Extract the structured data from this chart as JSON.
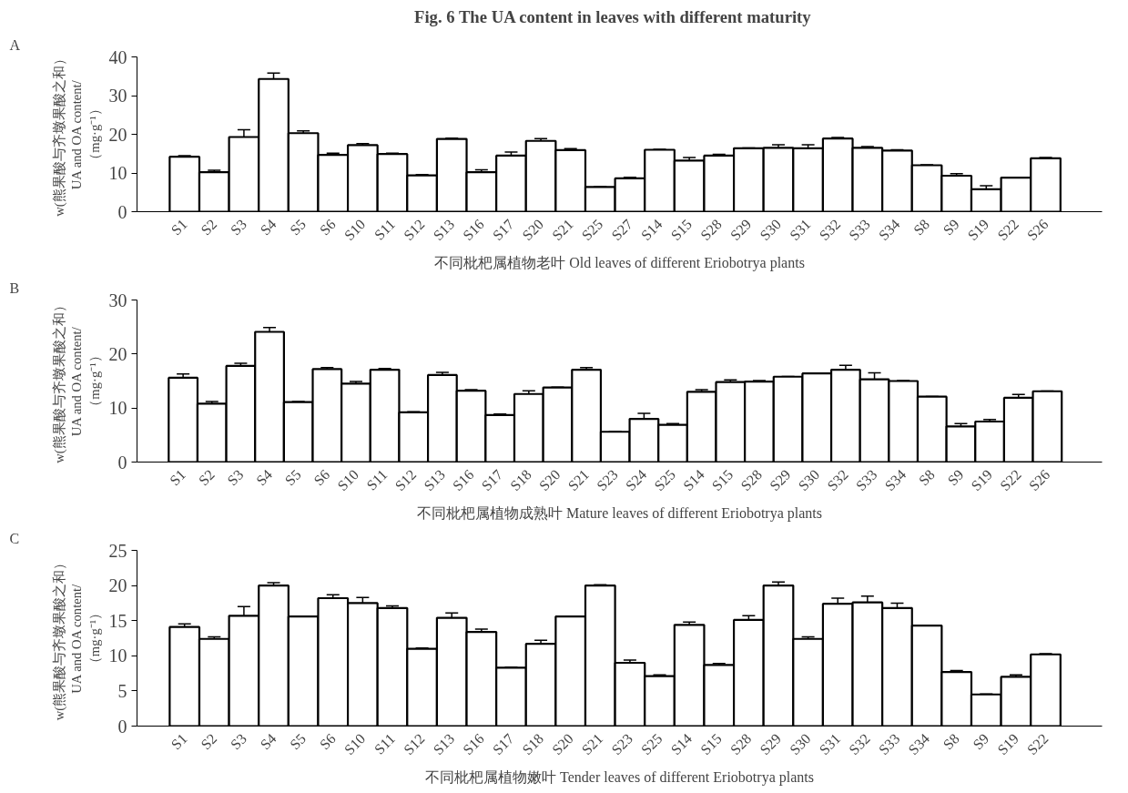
{
  "chart_data": [
    {
      "type": "bar",
      "title": "Fig. 6    The UA content in leaves with different maturity",
      "xlabel": "不同枇杷属植物老叶 Old leaves of different Eriobotrya plants",
      "ylabel": "w(熊果酸与齐墩果酸之和）\nUA and OA content/\n（mg·g⁻¹）",
      "annotations": [
        "A"
      ],
      "categories": [
        "S1",
        "S2",
        "S3",
        "S4",
        "S5",
        "S6",
        "S10",
        "S11",
        "S12",
        "S13",
        "S16",
        "S17",
        "S20",
        "S21",
        "S25",
        "S27",
        "S14",
        "S15",
        "S28",
        "S29",
        "S30",
        "S31",
        "S32",
        "S33",
        "S34",
        "S8",
        "S9",
        "S19",
        "S22",
        "S26"
      ],
      "series": [
        {
          "color": "#ffffff",
          "values": [
            14.2,
            10.2,
            19.3,
            34.3,
            20.3,
            14.7,
            17.2,
            14.9,
            9.4,
            18.8,
            10.2,
            14.5,
            18.3,
            15.9,
            6.4,
            8.6,
            16.0,
            13.2,
            14.5,
            16.4,
            16.5,
            16.4,
            18.9,
            16.5,
            15.8,
            12.0,
            9.3,
            5.8,
            8.8,
            13.8
          ],
          "errors": [
            0.3,
            0.5,
            1.9,
            1.5,
            0.6,
            0.4,
            0.4,
            0.2,
            0.2,
            0.2,
            0.6,
            0.9,
            0.6,
            0.4,
            0.1,
            0.3,
            0.1,
            0.8,
            0.3,
            0.1,
            0.8,
            0.9,
            0.3,
            0.3,
            0.2,
            0.1,
            0.5,
            0.9,
            0.1,
            0.2
          ]
        }
      ],
      "ylim": [
        0,
        40
      ],
      "yticks": [
        0,
        10,
        20,
        30,
        40
      ]
    },
    {
      "type": "bar",
      "xlabel": "不同枇杷属植物成熟叶 Mature leaves of different Eriobotrya plants",
      "ylabel": "w(熊果酸与齐墩果酸之和）\nUA and OA content/\n（mg·g⁻¹）",
      "annotations": [
        "B"
      ],
      "categories": [
        "S1",
        "S2",
        "S3",
        "S4",
        "S5",
        "S6",
        "S10",
        "S11",
        "S12",
        "S13",
        "S16",
        "S17",
        "S18",
        "S20",
        "S21",
        "S23",
        "S24",
        "S25",
        "S14",
        "S15",
        "S28",
        "S29",
        "S30",
        "S32",
        "S33",
        "S34",
        "S8",
        "S9",
        "S19",
        "S22",
        "S26"
      ],
      "series": [
        {
          "color": "#ffffff",
          "values": [
            15.6,
            10.8,
            17.8,
            24.1,
            11.1,
            17.2,
            14.5,
            17.1,
            9.2,
            16.1,
            13.2,
            8.7,
            12.6,
            13.8,
            17.1,
            5.6,
            8.0,
            6.9,
            13.0,
            14.8,
            14.9,
            15.8,
            16.4,
            17.1,
            15.3,
            15.0,
            12.1,
            6.6,
            7.5,
            11.9,
            13.1
          ],
          "errors": [
            0.7,
            0.4,
            0.5,
            0.8,
            0.1,
            0.3,
            0.4,
            0.2,
            0.1,
            0.5,
            0.2,
            0.2,
            0.6,
            0.05,
            0.4,
            0.05,
            1.0,
            0.2,
            0.4,
            0.4,
            0.2,
            0.05,
            0.05,
            0.8,
            1.2,
            0.1,
            0.05,
            0.5,
            0.4,
            0.6,
            0.05
          ]
        }
      ],
      "ylim": [
        0,
        30
      ],
      "yticks": [
        0,
        10,
        20,
        30
      ]
    },
    {
      "type": "bar",
      "xlabel": "不同枇杷属植物嫩叶 Tender leaves of different Eriobotrya plants",
      "ylabel": "w(熊果酸与齐墩果酸之和）\nUA and OA content/\n（mg·g⁻¹）",
      "annotations": [
        "C"
      ],
      "categories": [
        "S1",
        "S2",
        "S3",
        "S4",
        "S5",
        "S6",
        "S10",
        "S11",
        "S12",
        "S13",
        "S16",
        "S17",
        "S18",
        "S20",
        "S21",
        "S23",
        "S25",
        "S14",
        "S15",
        "S28",
        "S29",
        "S30",
        "S31",
        "S32",
        "S33",
        "S34",
        "S8",
        "S9",
        "S19",
        "S22"
      ],
      "series": [
        {
          "color": "#ffffff",
          "values": [
            14.1,
            12.4,
            15.7,
            20.0,
            15.6,
            18.2,
            17.5,
            16.8,
            11.0,
            15.4,
            13.4,
            8.3,
            11.7,
            15.6,
            20.0,
            9.0,
            7.1,
            14.4,
            8.7,
            15.1,
            20.0,
            12.4,
            17.4,
            17.6,
            16.8,
            14.3,
            7.7,
            4.5,
            7.0,
            10.2
          ],
          "errors": [
            0.45,
            0.3,
            1.3,
            0.4,
            0.05,
            0.5,
            0.8,
            0.3,
            0.1,
            0.7,
            0.4,
            0.1,
            0.5,
            0.05,
            0.1,
            0.4,
            0.2,
            0.4,
            0.2,
            0.6,
            0.5,
            0.3,
            0.8,
            0.9,
            0.7,
            0.05,
            0.2,
            0.05,
            0.3,
            0.1
          ]
        }
      ],
      "ylim": [
        0,
        25
      ],
      "yticks": [
        0,
        5,
        10,
        15,
        20,
        25
      ]
    }
  ]
}
